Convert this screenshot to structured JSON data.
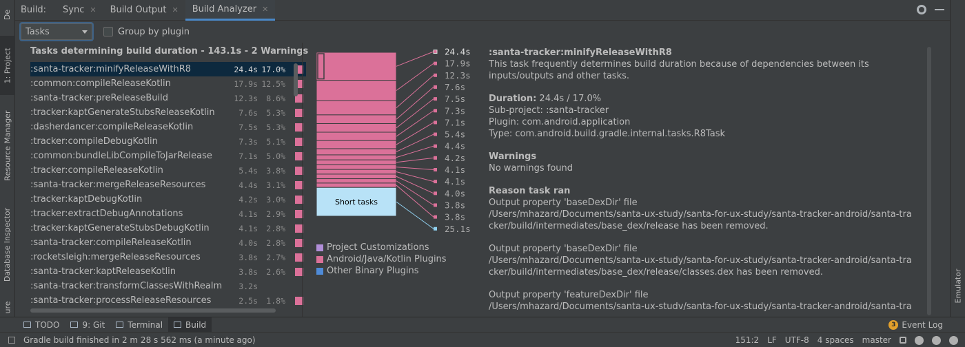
{
  "left_strip": {
    "tabs": [
      {
        "label": "De"
      },
      {
        "label": "1: Project"
      },
      {
        "label": "Resource Manager"
      },
      {
        "label": "Database Inspector"
      },
      {
        "label": "ure"
      }
    ]
  },
  "right_strip": {
    "label": "Emulator"
  },
  "header": {
    "build_label": "Build:",
    "tabs": [
      {
        "label": "Sync"
      },
      {
        "label": "Build Output"
      },
      {
        "label": "Build Analyzer"
      }
    ]
  },
  "toolbar": {
    "select_value": "Tasks",
    "group_label": "Group by plugin"
  },
  "task_list": {
    "title": "Tasks determining build duration - 143.1s - 2 Warnings",
    "rows": [
      {
        "name": ":santa-tracker:minifyReleaseWithR8",
        "duration": "24.4s",
        "percent": "17.0%"
      },
      {
        "name": ":common:compileReleaseKotlin",
        "duration": "17.9s",
        "percent": "12.5%"
      },
      {
        "name": ":santa-tracker:preReleaseBuild",
        "duration": "12.3s",
        "percent": "8.6%"
      },
      {
        "name": ":tracker:kaptGenerateStubsReleaseKotlin",
        "duration": "7.6s",
        "percent": "5.3%"
      },
      {
        "name": ":dasherdancer:compileReleaseKotlin",
        "duration": "7.5s",
        "percent": "5.3%"
      },
      {
        "name": ":tracker:compileDebugKotlin",
        "duration": "7.3s",
        "percent": "5.1%"
      },
      {
        "name": ":common:bundleLibCompileToJarRelease",
        "duration": "7.1s",
        "percent": "5.0%"
      },
      {
        "name": ":tracker:compileReleaseKotlin",
        "duration": "5.4s",
        "percent": "3.8%"
      },
      {
        "name": ":santa-tracker:mergeReleaseResources",
        "duration": "4.4s",
        "percent": "3.1%"
      },
      {
        "name": ":tracker:kaptDebugKotlin",
        "duration": "4.2s",
        "percent": "3.0%"
      },
      {
        "name": ":tracker:extractDebugAnnotations",
        "duration": "4.1s",
        "percent": "2.9%"
      },
      {
        "name": ":tracker:kaptGenerateStubsDebugKotlin",
        "duration": "4.1s",
        "percent": "2.8%"
      },
      {
        "name": ":santa-tracker:compileReleaseKotlin",
        "duration": "4.0s",
        "percent": "2.8%"
      },
      {
        "name": ":rocketsleigh:mergeReleaseResources",
        "duration": "3.8s",
        "percent": "2.7%"
      },
      {
        "name": ":santa-tracker:kaptReleaseKotlin",
        "duration": "3.8s",
        "percent": "2.6%"
      },
      {
        "name": ":santa-tracker:transformClassesWithRealmTransfor",
        "duration": "3.2s",
        "percent": ""
      },
      {
        "name": ":santa-tracker:processReleaseResources",
        "duration": "2.5s",
        "percent": "1.8%"
      }
    ]
  },
  "chart": {
    "durations": [
      "24.4s",
      "17.9s",
      "12.3s",
      "7.6s",
      "7.5s",
      "7.3s",
      "7.1s",
      "5.4s",
      "4.4s",
      "4.2s",
      "4.1s",
      "4.1s",
      "4.0s",
      "3.8s",
      "3.8s",
      "25.1s"
    ],
    "values": [
      24.4,
      17.9,
      12.3,
      7.6,
      7.5,
      7.3,
      7.1,
      5.4,
      4.4,
      4.2,
      4.1,
      4.1,
      4.0,
      3.8,
      3.8
    ],
    "short_tasks_value": 25.1,
    "short_tasks_label": "Short tasks",
    "legend": [
      {
        "label": "Project Customizations",
        "color": "#b18ed8"
      },
      {
        "label": "Android/Java/Kotlin Plugins",
        "color": "#db7199"
      },
      {
        "label": "Other Binary Plugins",
        "color": "#4f8bd8"
      }
    ],
    "colors": {
      "bar": "#db7199",
      "short": "#b8e2f7",
      "line": "#db7199",
      "short_line": "#8fd0ef"
    }
  },
  "details": {
    "title": ":santa-tracker:minifyReleaseWithR8",
    "description": "This task frequently determines build duration because of dependencies between its\ninputs/outputs and other tasks.",
    "duration_label": "Duration:",
    "duration_value": " 24.4s / 17.0%",
    "subproject": "Sub-project: :santa-tracker",
    "plugin": "Plugin: com.android.application",
    "type": "Type: com.android.build.gradle.internal.tasks.R8Task",
    "warnings_title": "Warnings",
    "warnings_text": "No warnings found",
    "reason_title": "Reason task ran",
    "reasons": [
      "Output property 'baseDexDir' file\n/Users/mhazard/Documents/santa-ux-study/santa-for-ux-study/santa-tracker-android/santa-tra\ncker/build/intermediates/base_dex/release has been removed.",
      "Output property 'baseDexDir' file\n/Users/mhazard/Documents/santa-ux-study/santa-for-ux-study/santa-tracker-android/santa-tra\ncker/build/intermediates/base_dex/release/classes.dex has been removed.",
      "Output property 'featureDexDir' file\n/Users/mhazard/Documents/santa-ux-studv/santa-for-ux-study/santa-tracker-android/santa-tra"
    ]
  },
  "tool_tabs": [
    {
      "label": "TODO"
    },
    {
      "label": "9: Git"
    },
    {
      "label": "Terminal"
    },
    {
      "label": "Build"
    }
  ],
  "event_log": {
    "count": "3",
    "label": "Event Log"
  },
  "status_bar": {
    "message": "Gradle build finished in 2 m 28 s 562 ms (a minute ago)",
    "position": "151:2",
    "line_sep": "LF",
    "encoding": "UTF-8",
    "indent": "4 spaces",
    "branch": "master"
  }
}
